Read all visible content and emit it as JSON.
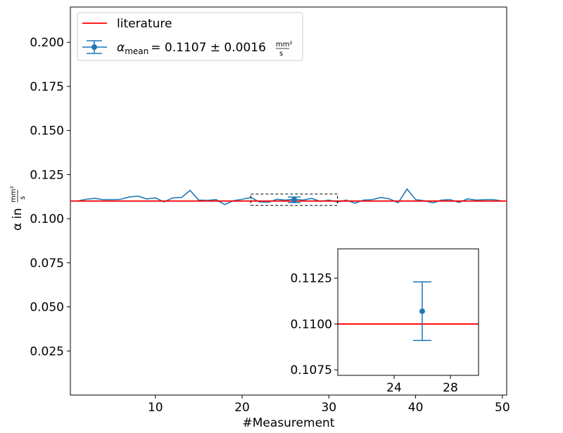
{
  "chart_data": [
    {
      "type": "line",
      "xlabel": "#Measurement",
      "ylabel_prefix": "α in",
      "unit_num": "mm²",
      "unit_den": "s",
      "xlim": [
        0.2,
        50.5
      ],
      "ylim": [
        0.0,
        0.22
      ],
      "x_ticks": [
        10,
        20,
        30,
        40,
        50
      ],
      "y_ticks": [
        0.025,
        0.05,
        0.075,
        0.1,
        0.125,
        0.15,
        0.175,
        0.2
      ],
      "y_tick_labels": [
        "0.025",
        "0.050",
        "0.075",
        "0.100",
        "0.125",
        "0.150",
        "0.175",
        "0.200"
      ],
      "legend_placement": "upper-left",
      "legend": {
        "literature": "literature",
        "mean_symbol": "α",
        "mean_sub": "mean",
        "mean_value": "= 0.1107 ± 0.0016"
      },
      "literature_value": 0.11,
      "mean": {
        "x": 26,
        "y": 0.1107,
        "err": 0.0016
      },
      "colors": {
        "series": "#1f77b4",
        "literature": "#ff0000"
      },
      "series": [
        {
          "x": [
            1,
            2,
            3,
            4,
            5,
            6,
            7,
            8,
            9,
            10,
            11,
            12,
            13,
            14,
            15,
            16,
            17,
            18,
            19,
            20,
            21,
            22,
            23,
            24,
            25,
            26,
            27,
            28,
            29,
            30,
            31,
            32,
            33,
            34,
            35,
            36,
            37,
            38,
            39,
            40,
            41,
            42,
            43,
            44,
            45,
            46,
            47,
            48,
            49,
            50
          ],
          "values": [
            0.11,
            0.111,
            0.1115,
            0.1108,
            0.1108,
            0.111,
            0.1123,
            0.1128,
            0.1112,
            0.1118,
            0.1095,
            0.1118,
            0.112,
            0.116,
            0.1105,
            0.1103,
            0.1108,
            0.108,
            0.1102,
            0.111,
            0.112,
            0.1095,
            0.1092,
            0.111,
            0.1105,
            0.1112,
            0.1105,
            0.1115,
            0.1098,
            0.1105,
            0.1095,
            0.1105,
            0.1088,
            0.1105,
            0.1108,
            0.112,
            0.1112,
            0.109,
            0.1168,
            0.1108,
            0.1102,
            0.109,
            0.1105,
            0.1108,
            0.1092,
            0.1112,
            0.1105,
            0.1108,
            0.1108,
            0.11
          ]
        }
      ],
      "zoom_box": {
        "xlim": [
          21,
          31
        ],
        "ylim": [
          0.1075,
          0.114
        ]
      }
    },
    {
      "type": "line",
      "panel": "inset",
      "xlim": [
        20,
        30
      ],
      "ylim": [
        0.1072,
        0.1141
      ],
      "x_ticks": [
        24,
        28
      ],
      "y_ticks": [
        0.1075,
        0.11,
        0.1125
      ],
      "y_tick_labels": [
        "0.1075",
        "0.1100",
        "0.1125"
      ],
      "literature_value": 0.11,
      "mean": {
        "x": 26,
        "y": 0.1107,
        "err": 0.0016
      }
    }
  ]
}
